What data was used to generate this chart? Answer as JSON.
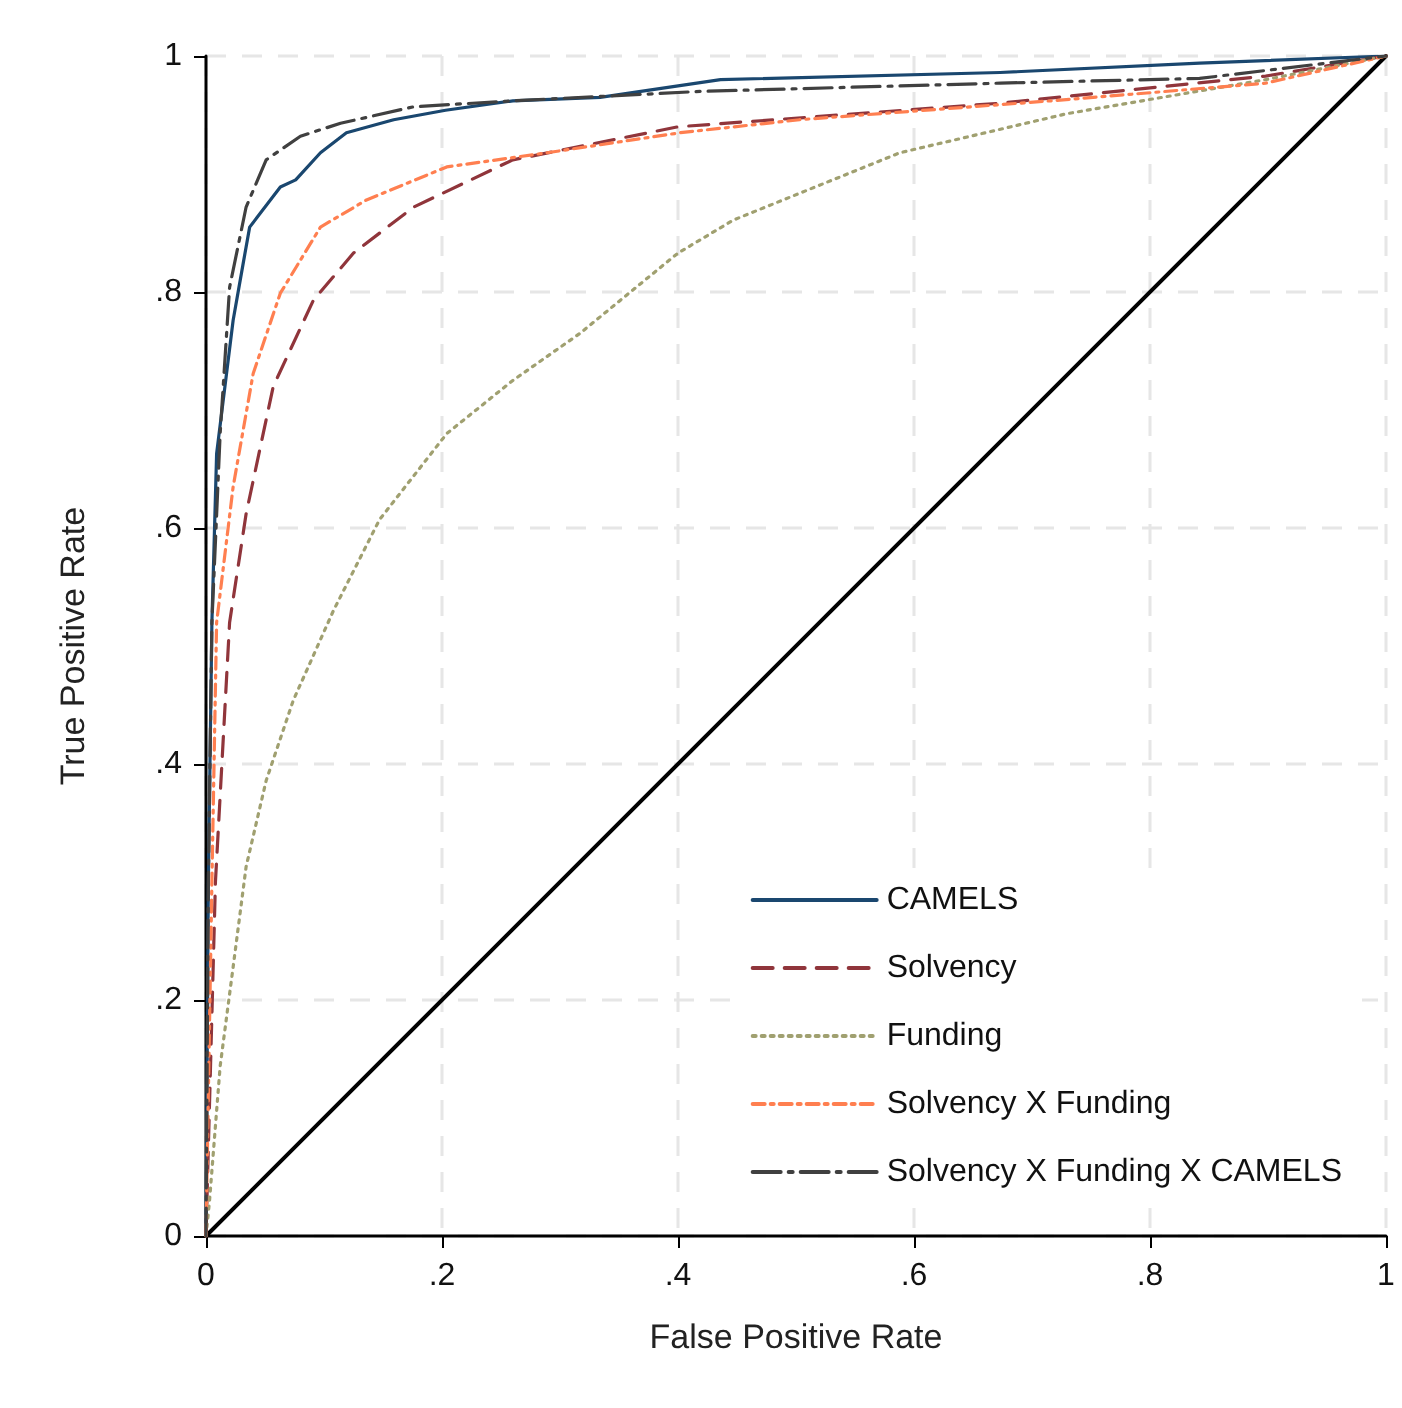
{
  "chart_data": {
    "type": "line",
    "xlabel": "False Positive Rate",
    "ylabel": "True Positive Rate",
    "xlim": [
      0,
      1
    ],
    "ylim": [
      0,
      1
    ],
    "xticks": [
      {
        "value": 0,
        "label": "0"
      },
      {
        "value": 0.2,
        "label": ".2"
      },
      {
        "value": 0.4,
        "label": ".4"
      },
      {
        "value": 0.6,
        "label": ".6"
      },
      {
        "value": 0.8,
        "label": ".8"
      },
      {
        "value": 1,
        "label": "1"
      }
    ],
    "yticks": [
      {
        "value": 0,
        "label": "0"
      },
      {
        "value": 0.2,
        "label": ".2"
      },
      {
        "value": 0.4,
        "label": ".4"
      },
      {
        "value": 0.6,
        "label": ".6"
      },
      {
        "value": 0.8,
        "label": ".8"
      },
      {
        "value": 1,
        "label": "1"
      }
    ],
    "grid": true,
    "legend": "bottom right",
    "marker": "none",
    "series": [
      {
        "name": "CAMELS",
        "color": "#1a476f",
        "line_style": "solid",
        "x": [
          0,
          0.002,
          0.005,
          0.009,
          0.023,
          0.032,
          0.037,
          0.063,
          0.076,
          0.097,
          0.119,
          0.159,
          0.203,
          0.26,
          0.334,
          0.436,
          0.673,
          0.842,
          1
        ],
        "values": [
          0,
          0.3,
          0.52,
          0.663,
          0.776,
          0.827,
          0.855,
          0.889,
          0.895,
          0.918,
          0.935,
          0.946,
          0.954,
          0.962,
          0.965,
          0.98,
          0.986,
          0.994,
          1
        ]
      },
      {
        "name": "Solvency",
        "color": "#90353b",
        "line_style": "dashed",
        "x": [
          0,
          0.008,
          0.02,
          0.034,
          0.057,
          0.091,
          0.125,
          0.176,
          0.26,
          0.4,
          0.673,
          0.898,
          1
        ],
        "values": [
          0,
          0.3,
          0.52,
          0.612,
          0.72,
          0.793,
          0.833,
          0.872,
          0.912,
          0.94,
          0.96,
          0.983,
          1
        ]
      },
      {
        "name": "Funding",
        "color": "#a0a070",
        "line_style": "dotted",
        "x": [
          0,
          0.003,
          0.012,
          0.023,
          0.034,
          0.051,
          0.074,
          0.108,
          0.147,
          0.204,
          0.26,
          0.317,
          0.4,
          0.447,
          0.588,
          0.729,
          0.898,
          1
        ],
        "values": [
          0,
          0.03,
          0.144,
          0.228,
          0.313,
          0.386,
          0.454,
          0.53,
          0.607,
          0.68,
          0.725,
          0.765,
          0.833,
          0.861,
          0.918,
          0.951,
          0.98,
          1
        ]
      },
      {
        "name": "Solvency X Funding",
        "color": "#ff7f50",
        "line_style": "dashdot",
        "x": [
          0,
          0.005,
          0.009,
          0.023,
          0.04,
          0.063,
          0.097,
          0.136,
          0.204,
          0.289,
          0.402,
          0.503,
          0.729,
          0.898,
          1
        ],
        "values": [
          0,
          0.3,
          0.52,
          0.635,
          0.731,
          0.799,
          0.855,
          0.878,
          0.906,
          0.918,
          0.935,
          0.946,
          0.963,
          0.977,
          1
        ]
      },
      {
        "name": "Solvency X Funding X CAMELS",
        "color": "#404040",
        "line_style": "longdashdot",
        "x": [
          0,
          0.002,
          0.005,
          0.012,
          0.02,
          0.034,
          0.051,
          0.08,
          0.114,
          0.176,
          0.26,
          0.419,
          0.673,
          0.842,
          1
        ],
        "values": [
          0,
          0.3,
          0.52,
          0.68,
          0.804,
          0.872,
          0.912,
          0.932,
          0.943,
          0.957,
          0.962,
          0.97,
          0.977,
          0.981,
          1
        ]
      },
      {
        "color": "#000000",
        "line_style": "solid",
        "x": [
          0,
          1
        ],
        "values": [
          0,
          1
        ]
      }
    ]
  }
}
